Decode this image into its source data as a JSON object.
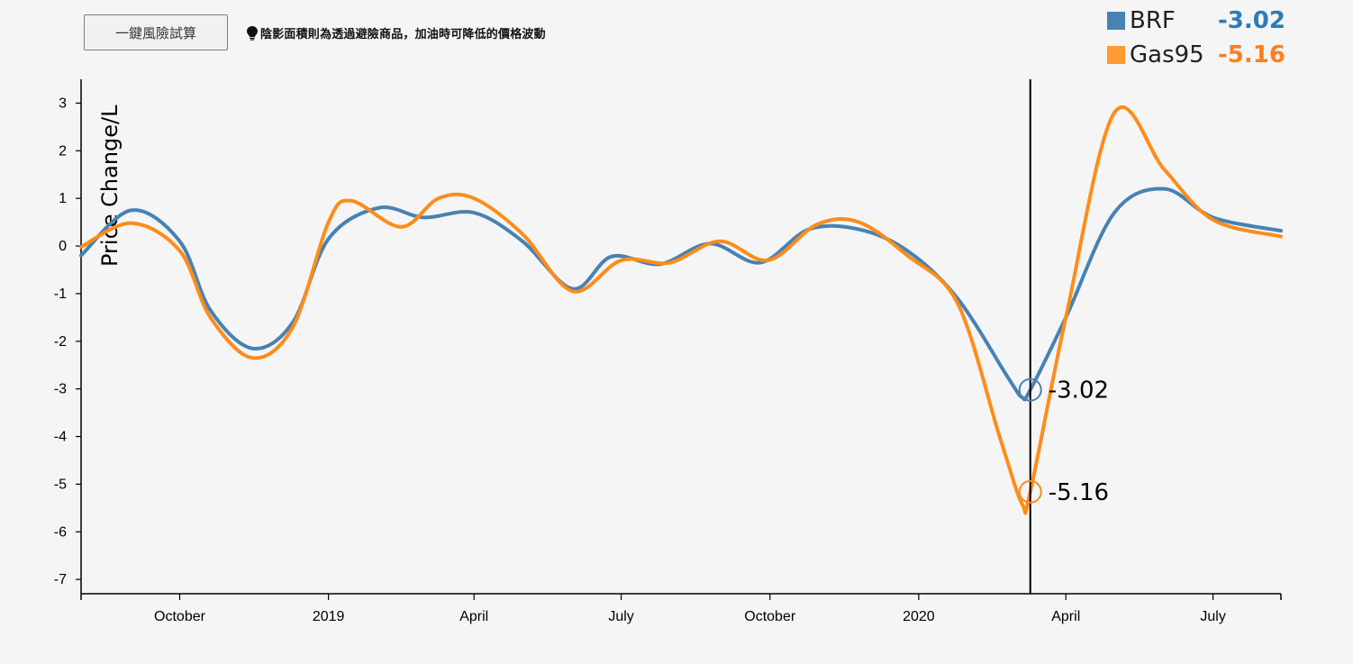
{
  "toolbar": {
    "risk_button_label": "一鍵風險試算",
    "hint_text": "陰影面積則為透過避險商品，加油時可降低的價格波動",
    "hint_icon": "lightbulb-icon"
  },
  "legend": [
    {
      "name": "BRF",
      "value": "-3.02",
      "color": "#4682b4",
      "value_color": "#2e7bb8"
    },
    {
      "name": "Gas95",
      "value": "-5.16",
      "color": "#ff9b33",
      "value_color": "#ff7f1e"
    }
  ],
  "chart_data": {
    "type": "line",
    "title": "",
    "xlabel": "",
    "ylabel": "Price Change/L",
    "ylim": [
      -7.3,
      3.5
    ],
    "xlim": [
      "2018-08-01",
      "2020-08-12"
    ],
    "yticks": [
      3,
      2,
      1,
      0,
      -1,
      -2,
      -3,
      -4,
      -5,
      -6,
      -7
    ],
    "xticks": [
      {
        "date": "2018-10-01",
        "label": "October"
      },
      {
        "date": "2019-01-01",
        "label": "2019"
      },
      {
        "date": "2019-04-01",
        "label": "April"
      },
      {
        "date": "2019-07-01",
        "label": "July"
      },
      {
        "date": "2019-10-01",
        "label": "October"
      },
      {
        "date": "2020-01-01",
        "label": "2020"
      },
      {
        "date": "2020-04-01",
        "label": "April"
      },
      {
        "date": "2020-07-01",
        "label": "July"
      }
    ],
    "grid": false,
    "cursor": {
      "date": "2020-03-10",
      "labels": [
        "-3.02",
        "-5.16"
      ]
    },
    "series": [
      {
        "name": "BRF",
        "color": "#4682b4",
        "points": [
          [
            "2018-08-01",
            -0.2
          ],
          [
            "2018-09-01",
            0.75
          ],
          [
            "2018-10-01",
            0.1
          ],
          [
            "2018-10-20",
            -1.35
          ],
          [
            "2018-11-15",
            -2.15
          ],
          [
            "2018-12-10",
            -1.6
          ],
          [
            "2019-01-01",
            0.15
          ],
          [
            "2019-02-01",
            0.8
          ],
          [
            "2019-03-01",
            0.6
          ],
          [
            "2019-04-01",
            0.7
          ],
          [
            "2019-05-01",
            0.1
          ],
          [
            "2019-06-01",
            -0.9
          ],
          [
            "2019-06-25",
            -0.22
          ],
          [
            "2019-07-25",
            -0.38
          ],
          [
            "2019-08-25",
            0.05
          ],
          [
            "2019-09-25",
            -0.35
          ],
          [
            "2019-10-25",
            0.35
          ],
          [
            "2019-11-25",
            0.35
          ],
          [
            "2019-12-25",
            -0.1
          ],
          [
            "2020-01-25",
            -1.1
          ],
          [
            "2020-02-25",
            -2.75
          ],
          [
            "2020-03-05",
            -3.18
          ],
          [
            "2020-03-10",
            -3.02
          ],
          [
            "2020-04-01",
            -1.5
          ],
          [
            "2020-05-01",
            0.7
          ],
          [
            "2020-06-01",
            1.2
          ],
          [
            "2020-07-01",
            0.6
          ],
          [
            "2020-08-12",
            0.32
          ]
        ]
      },
      {
        "name": "Gas95",
        "color": "#ff8c1a",
        "points": [
          [
            "2018-08-01",
            -0.02
          ],
          [
            "2018-09-01",
            0.48
          ],
          [
            "2018-10-01",
            -0.1
          ],
          [
            "2018-10-20",
            -1.5
          ],
          [
            "2018-11-15",
            -2.35
          ],
          [
            "2018-12-10",
            -1.7
          ],
          [
            "2019-01-01",
            0.5
          ],
          [
            "2019-01-15",
            0.95
          ],
          [
            "2019-02-15",
            0.4
          ],
          [
            "2019-03-10",
            1.0
          ],
          [
            "2019-04-01",
            1.0
          ],
          [
            "2019-05-01",
            0.25
          ],
          [
            "2019-06-01",
            -0.95
          ],
          [
            "2019-07-01",
            -0.3
          ],
          [
            "2019-07-31",
            -0.35
          ],
          [
            "2019-08-31",
            0.1
          ],
          [
            "2019-09-30",
            -0.3
          ],
          [
            "2019-10-30",
            0.45
          ],
          [
            "2019-11-25",
            0.5
          ],
          [
            "2019-12-25",
            -0.2
          ],
          [
            "2020-01-25",
            -1.2
          ],
          [
            "2020-02-20",
            -4.0
          ],
          [
            "2020-03-05",
            -5.42
          ],
          [
            "2020-03-10",
            -5.16
          ],
          [
            "2020-04-01",
            -1.5
          ],
          [
            "2020-05-01",
            2.8
          ],
          [
            "2020-06-01",
            1.6
          ],
          [
            "2020-07-01",
            0.55
          ],
          [
            "2020-08-12",
            0.2
          ]
        ]
      }
    ]
  }
}
